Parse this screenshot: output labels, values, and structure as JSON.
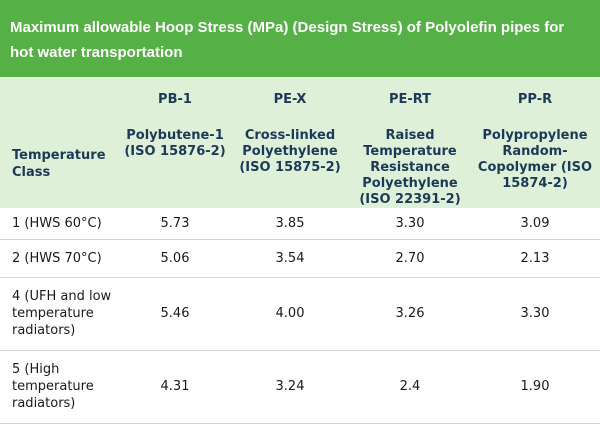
{
  "title": "Maximum allowable Hoop Stress (MPa) (Design Stress) of Polyolefin pipes for hot water transportation",
  "header": {
    "temperature_class": "Temperature Class",
    "columns": [
      {
        "code": "PB-1",
        "desc": "Polybutene-1 (ISO 15876-2)"
      },
      {
        "code": "PE-X",
        "desc": "Cross-linked Polyethylene (ISO 15875-2)"
      },
      {
        "code": "PE-RT",
        "desc": "Raised Temperature Resistance Polyethylene (ISO 22391-2)"
      },
      {
        "code": "PP-R",
        "desc": "Polypropylene Random-Copolymer (ISO 15874-2)"
      }
    ]
  },
  "rows": [
    {
      "class": "1 (HWS 60°C)",
      "values": [
        "5.73",
        "3.85",
        "3.30",
        "3.09"
      ]
    },
    {
      "class": "2 (HWS 70°C)",
      "values": [
        "5.06",
        "3.54",
        "2.70",
        "2.13"
      ]
    },
    {
      "class": "4 (UFH and low temperature radiators)",
      "values": [
        "5.46",
        "4.00",
        "3.26",
        "3.30"
      ]
    },
    {
      "class": "5 (High temperature radiators)",
      "values": [
        "4.31",
        "3.24",
        "2.4",
        "1.90"
      ]
    }
  ]
}
